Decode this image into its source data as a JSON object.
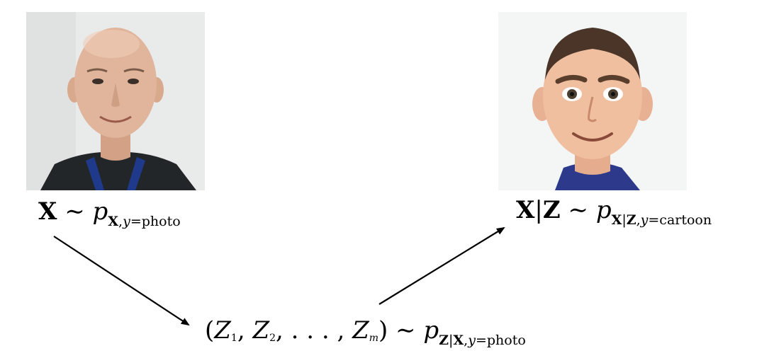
{
  "source": {
    "image_desc": "Photograph of a smiling bald man in dark shirt with blue apron straps",
    "formula": {
      "var": "X",
      "tilde": "∼",
      "p": "p",
      "sub_bold": "X",
      "sub_comma": ",",
      "sub_y": "y",
      "sub_eq": "=photo"
    }
  },
  "target": {
    "image_desc": "Cartoon rendering of the same smiling man",
    "formula": {
      "var": "X",
      "bar": "|",
      "var2": "Z",
      "tilde": "∼",
      "p": "p",
      "sub_bold1": "X",
      "sub_bar": "|",
      "sub_bold2": "Z",
      "sub_comma": ",",
      "sub_y": "y",
      "sub_eq": "=cartoon"
    }
  },
  "latent": {
    "formula": {
      "open": "(",
      "z": "Z",
      "i1": "1",
      "sep1": ", ",
      "i2": "2",
      "sep2": ", . . . , ",
      "im": "m",
      "close": ")",
      "tilde": "∼",
      "p": "p",
      "sub_bold1": "Z",
      "sub_bar": "|",
      "sub_bold2": "X",
      "sub_comma": ",",
      "sub_y": "y",
      "sub_eq": "=photo"
    }
  },
  "colors": {
    "arrow": "#000000",
    "apron": "#1f3a8a",
    "photo_bg": "#e9ebea",
    "skin": "#e0b59c",
    "cartoon_skin": "#f0bfa0"
  }
}
